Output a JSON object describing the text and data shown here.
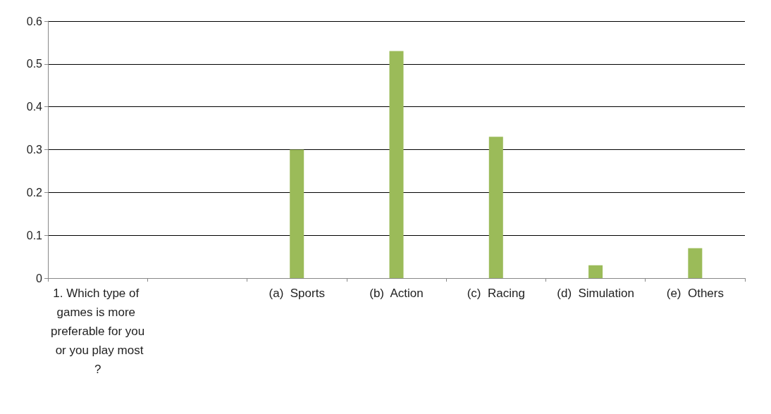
{
  "chart_data": {
    "type": "bar",
    "categories": [
      "1. Which type of games is more preferable for you or you play most?",
      null,
      "(a)  Sports",
      "(b)  Action",
      "(c)  Racing",
      "(d)  Simulation",
      "(e)  Others"
    ],
    "values": [
      null,
      null,
      0.3,
      0.53,
      0.33,
      0.03,
      0.07
    ],
    "color": "#9bbb59",
    "ylim": [
      0,
      0.6
    ],
    "yticks": [
      0,
      0.1,
      0.2,
      0.3,
      0.4,
      0.5,
      0.6
    ],
    "grid": "y"
  }
}
